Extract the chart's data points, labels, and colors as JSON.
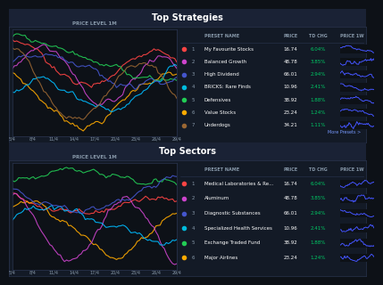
{
  "bg_color": "#0d1117",
  "panel_color": "#131a26",
  "header_color": "#1a2235",
  "border_color": "#2a3550",
  "text_color": "#ffffff",
  "subtext_color": "#8899aa",
  "green_color": "#00cc66",
  "link_color": "#7799ff",
  "title1": "Top Strategies",
  "title2": "Top Sectors",
  "col_headers": [
    "PRESET NAME",
    "PRICE",
    "TD CHG",
    "PRICE 1W"
  ],
  "chart_label": "PRICE LEVEL 1M",
  "more_presets": "More Presets >",
  "strategies": [
    {
      "num": 1,
      "name": "My Favourite Stocks",
      "price": "16.74",
      "chg": "6.04%",
      "color": "#ff4444"
    },
    {
      "num": 2,
      "name": "Balanced Growth",
      "price": "48.78",
      "chg": "3.85%",
      "color": "#cc44cc"
    },
    {
      "num": 3,
      "name": "High Dividend",
      "price": "66.01",
      "chg": "2.94%",
      "color": "#4455cc"
    },
    {
      "num": 4,
      "name": "BRICKS: Rare Finds",
      "price": "10.96",
      "chg": "2.41%",
      "color": "#00bbdd"
    },
    {
      "num": 5,
      "name": "Defensives",
      "price": "38.92",
      "chg": "1.88%",
      "color": "#22cc55"
    },
    {
      "num": 6,
      "name": "Value Stocks",
      "price": "23.24",
      "chg": "1.24%",
      "color": "#ffaa00"
    },
    {
      "num": 7,
      "name": "Underdogs",
      "price": "34.21",
      "chg": "1.11%",
      "color": "#996633"
    }
  ],
  "sectors": [
    {
      "num": 1,
      "name": "Medical Laboratories & Re...",
      "price": "16.74",
      "chg": "6.04%",
      "color": "#ff4444"
    },
    {
      "num": 2,
      "name": "Aluminum",
      "price": "48.78",
      "chg": "3.85%",
      "color": "#cc44cc"
    },
    {
      "num": 3,
      "name": "Diagnostic Substances",
      "price": "66.01",
      "chg": "2.94%",
      "color": "#4455cc"
    },
    {
      "num": 4,
      "name": "Specialized Health Services",
      "price": "10.96",
      "chg": "2.41%",
      "color": "#00bbdd"
    },
    {
      "num": 5,
      "name": "Exchange Traded Fund",
      "price": "38.92",
      "chg": "1.88%",
      "color": "#22cc55"
    },
    {
      "num": 6,
      "name": "Major Airlines",
      "price": "23.24",
      "chg": "1.24%",
      "color": "#ffaa00"
    }
  ],
  "line_colors_top": [
    "#ff4444",
    "#ffaa00",
    "#cc44cc",
    "#00bbff",
    "#22cc55",
    "#4455cc",
    "#996633"
  ],
  "line_colors_bot": [
    "#ff4444",
    "#ffaa00",
    "#cc44cc",
    "#00bbff",
    "#22cc55",
    "#4455cc"
  ],
  "xticklabels": [
    "5/4",
    "8/4",
    "11/4",
    "14/4",
    "17/4",
    "20/4",
    "23/4",
    "26/4",
    "29/4"
  ]
}
